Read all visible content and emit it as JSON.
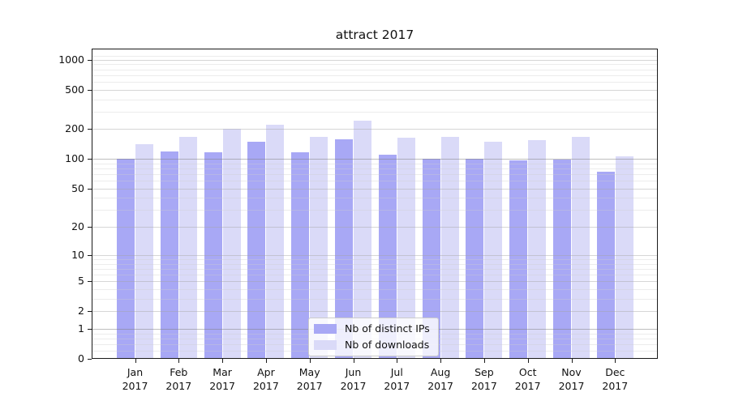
{
  "chart_data": {
    "type": "bar",
    "title": "attract 2017",
    "yscale": "log1p",
    "grid": true,
    "legend_position": "lower center",
    "categories": [
      "Jan 2017",
      "Feb 2017",
      "Mar 2017",
      "Apr 2017",
      "May 2017",
      "Jun 2017",
      "Jul 2017",
      "Aug 2017",
      "Sep 2017",
      "Oct 2017",
      "Nov 2017",
      "Dec 2017"
    ],
    "series": [
      {
        "name": "Nb of distinct IPs",
        "color": "#a8a8f5",
        "values": [
          100,
          120,
          116,
          150,
          116,
          157,
          110,
          101,
          100,
          97,
          98,
          74
        ]
      },
      {
        "name": "Nb of downloads",
        "color": "#dadaf8",
        "values": [
          140,
          167,
          200,
          220,
          166,
          245,
          164,
          168,
          150,
          154,
          166,
          107
        ]
      }
    ],
    "yticks": [
      0,
      1,
      2,
      5,
      10,
      20,
      50,
      100,
      200,
      500,
      1000
    ],
    "yticks_emphasized": [
      1,
      100
    ],
    "yticks_minor": [
      0.2,
      0.4,
      0.6,
      0.8,
      3,
      4,
      6,
      7,
      8,
      9,
      30,
      40,
      60,
      70,
      80,
      90,
      300,
      400,
      600,
      700,
      800,
      900,
      1100
    ],
    "ylim": [
      0,
      1290
    ],
    "xlabel": "",
    "ylabel": ""
  }
}
